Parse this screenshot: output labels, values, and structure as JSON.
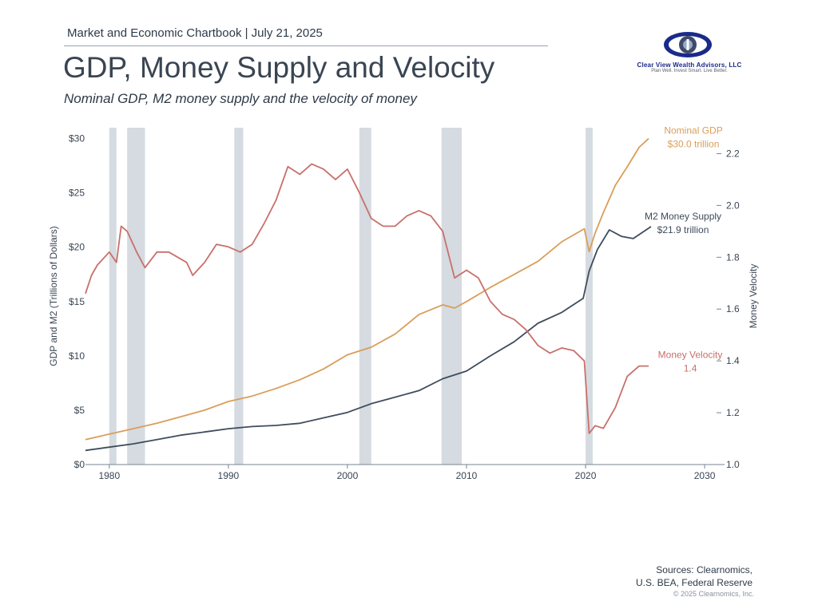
{
  "header": {
    "kicker": "Market and Economic Chartbook | July 21, 2025",
    "title": "GDP, Money Supply and Velocity",
    "subtitle": "Nominal GDP, M2 money supply and the velocity of money"
  },
  "logo": {
    "name": "Clear View Wealth Advisors, LLC",
    "tagline": "Plan Well. Invest Smart. Live Better."
  },
  "sources": {
    "line1": "Sources: Clearnomics,",
    "line2": "U.S. BEA, Federal Reserve",
    "copyright": "© 2025 Clearnomics, Inc."
  },
  "chart_data": {
    "type": "line",
    "x_ticks": [
      {
        "value": 1980,
        "label": "1980"
      },
      {
        "value": 1990,
        "label": "1990"
      },
      {
        "value": 2000,
        "label": "2000"
      },
      {
        "value": 2010,
        "label": "2010"
      },
      {
        "value": 2020,
        "label": "2020"
      },
      {
        "value": 2030,
        "label": "2030"
      }
    ],
    "xlim": [
      1978,
      2031
    ],
    "y_left": {
      "label": "GDP and M2 (Trillions of Dollars)",
      "ylim": [
        0,
        31
      ],
      "ticks": [
        {
          "value": 0,
          "label": "$0"
        },
        {
          "value": 5,
          "label": "$5"
        },
        {
          "value": 10,
          "label": "$10"
        },
        {
          "value": 15,
          "label": "$15"
        },
        {
          "value": 20,
          "label": "$20"
        },
        {
          "value": 25,
          "label": "$25"
        },
        {
          "value": 30,
          "label": "$30"
        }
      ]
    },
    "y_right": {
      "label": "Money Velocity",
      "ylim": [
        1.0,
        2.3
      ],
      "ticks": [
        {
          "value": 1.0,
          "label": "1.0"
        },
        {
          "value": 1.2,
          "label": "1.2"
        },
        {
          "value": 1.4,
          "label": "1.4"
        },
        {
          "value": 1.6,
          "label": "1.6"
        },
        {
          "value": 1.8,
          "label": "1.8"
        },
        {
          "value": 2.0,
          "label": "2.0"
        },
        {
          "value": 2.2,
          "label": "2.2"
        }
      ]
    },
    "recessions": [
      [
        1980.0,
        1980.6
      ],
      [
        1981.5,
        1983.0
      ],
      [
        1990.5,
        1991.25
      ],
      [
        2001.0,
        2002.0
      ],
      [
        2007.9,
        2009.6
      ],
      [
        2020.0,
        2020.6
      ]
    ],
    "recession_color": "#d5dbe0",
    "series": [
      {
        "name": "Nominal GDP",
        "label_lines": [
          "Nominal GDP",
          "$30.0 trillion"
        ],
        "axis": "left",
        "color": "#d99e5a",
        "points": [
          [
            1978,
            2.3
          ],
          [
            1980,
            2.8
          ],
          [
            1982,
            3.3
          ],
          [
            1984,
            3.8
          ],
          [
            1986,
            4.4
          ],
          [
            1988,
            5.0
          ],
          [
            1990,
            5.8
          ],
          [
            1992,
            6.3
          ],
          [
            1994,
            7.0
          ],
          [
            1996,
            7.8
          ],
          [
            1998,
            8.8
          ],
          [
            2000,
            10.1
          ],
          [
            2002,
            10.8
          ],
          [
            2004,
            12.0
          ],
          [
            2006,
            13.8
          ],
          [
            2008,
            14.7
          ],
          [
            2009,
            14.4
          ],
          [
            2010,
            15.0
          ],
          [
            2012,
            16.3
          ],
          [
            2014,
            17.5
          ],
          [
            2016,
            18.7
          ],
          [
            2018,
            20.5
          ],
          [
            2019.9,
            21.7
          ],
          [
            2020.3,
            19.6
          ],
          [
            2020.8,
            21.3
          ],
          [
            2021.5,
            23.2
          ],
          [
            2022.5,
            25.7
          ],
          [
            2023.5,
            27.4
          ],
          [
            2024.5,
            29.2
          ],
          [
            2025.3,
            30.0
          ]
        ]
      },
      {
        "name": "M2 Money Supply",
        "label_lines": [
          "M2 Money Supply",
          "$21.9 trillion"
        ],
        "axis": "left",
        "color": "#3f4c5c",
        "points": [
          [
            1978,
            1.3
          ],
          [
            1980,
            1.6
          ],
          [
            1982,
            1.9
          ],
          [
            1984,
            2.3
          ],
          [
            1986,
            2.7
          ],
          [
            1988,
            3.0
          ],
          [
            1990,
            3.3
          ],
          [
            1992,
            3.5
          ],
          [
            1994,
            3.6
          ],
          [
            1996,
            3.8
          ],
          [
            1998,
            4.3
          ],
          [
            2000,
            4.8
          ],
          [
            2002,
            5.6
          ],
          [
            2004,
            6.2
          ],
          [
            2006,
            6.8
          ],
          [
            2008,
            7.9
          ],
          [
            2010,
            8.6
          ],
          [
            2012,
            10.0
          ],
          [
            2014,
            11.3
          ],
          [
            2016,
            13.0
          ],
          [
            2018,
            14.0
          ],
          [
            2019.8,
            15.3
          ],
          [
            2020.3,
            17.8
          ],
          [
            2021,
            19.8
          ],
          [
            2022,
            21.6
          ],
          [
            2023,
            21.0
          ],
          [
            2024,
            20.8
          ],
          [
            2025.5,
            21.9
          ]
        ]
      },
      {
        "name": "Money Velocity",
        "label_lines": [
          "Money Velocity",
          "1.4"
        ],
        "axis": "right",
        "color": "#c8706b",
        "points": [
          [
            1978,
            1.66
          ],
          [
            1978.5,
            1.73
          ],
          [
            1979,
            1.77
          ],
          [
            1980,
            1.82
          ],
          [
            1980.6,
            1.78
          ],
          [
            1981,
            1.92
          ],
          [
            1981.5,
            1.9
          ],
          [
            1982.3,
            1.82
          ],
          [
            1983,
            1.76
          ],
          [
            1984,
            1.82
          ],
          [
            1985,
            1.82
          ],
          [
            1986.5,
            1.78
          ],
          [
            1987,
            1.73
          ],
          [
            1988,
            1.78
          ],
          [
            1989,
            1.85
          ],
          [
            1990,
            1.84
          ],
          [
            1991,
            1.82
          ],
          [
            1992,
            1.85
          ],
          [
            1993,
            1.93
          ],
          [
            1994,
            2.02
          ],
          [
            1995,
            2.15
          ],
          [
            1996,
            2.12
          ],
          [
            1997,
            2.16
          ],
          [
            1998,
            2.14
          ],
          [
            1999,
            2.1
          ],
          [
            2000,
            2.14
          ],
          [
            2001,
            2.05
          ],
          [
            2002,
            1.95
          ],
          [
            2003,
            1.92
          ],
          [
            2004,
            1.92
          ],
          [
            2005,
            1.96
          ],
          [
            2006,
            1.98
          ],
          [
            2007,
            1.96
          ],
          [
            2008,
            1.9
          ],
          [
            2009,
            1.72
          ],
          [
            2010,
            1.75
          ],
          [
            2011,
            1.72
          ],
          [
            2012,
            1.63
          ],
          [
            2013,
            1.58
          ],
          [
            2014,
            1.56
          ],
          [
            2015,
            1.52
          ],
          [
            2016,
            1.46
          ],
          [
            2017,
            1.43
          ],
          [
            2018,
            1.45
          ],
          [
            2019,
            1.44
          ],
          [
            2019.9,
            1.4
          ],
          [
            2020.3,
            1.12
          ],
          [
            2020.8,
            1.15
          ],
          [
            2021.5,
            1.14
          ],
          [
            2022.5,
            1.22
          ],
          [
            2023.5,
            1.34
          ],
          [
            2024.5,
            1.38
          ],
          [
            2025.3,
            1.38
          ]
        ]
      }
    ]
  }
}
